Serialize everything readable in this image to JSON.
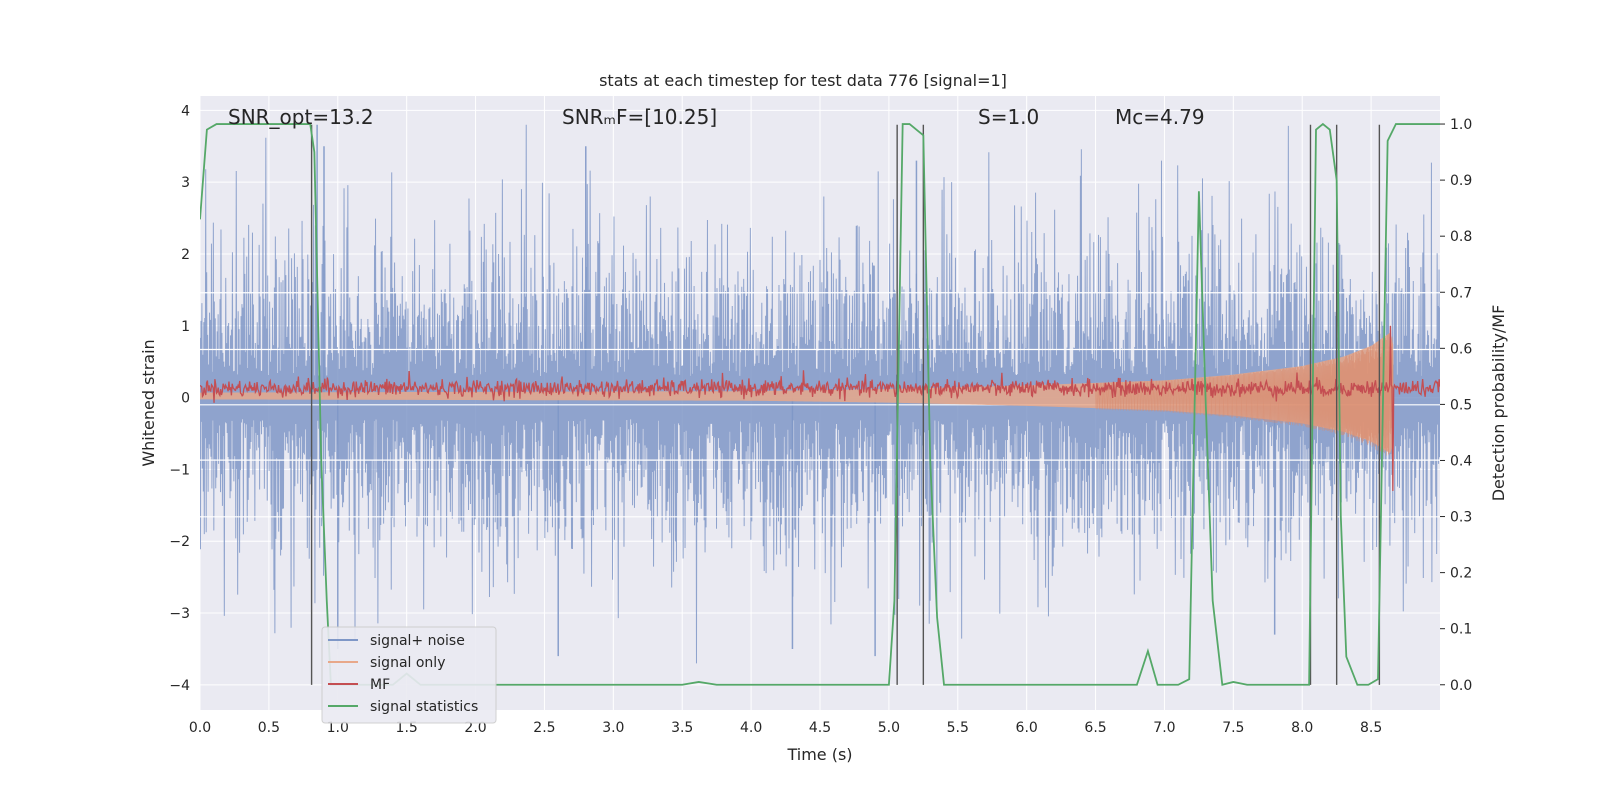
{
  "chart_data": {
    "type": "line",
    "title": "stats at each timestep for test data 776 [signal=1]",
    "xlabel": "Time (s)",
    "ylabel": "Whitened strain",
    "ylabel_right": "Detection probability/MF",
    "xlim": [
      0.0,
      9.0
    ],
    "ylim": [
      -4.35,
      4.2
    ],
    "ylim_right": [
      -0.045,
      1.05
    ],
    "x_ticks": [
      "0.0",
      "0.5",
      "1.0",
      "1.5",
      "2.0",
      "2.5",
      "3.0",
      "3.5",
      "4.0",
      "4.5",
      "5.0",
      "5.5",
      "6.0",
      "6.5",
      "7.0",
      "7.5",
      "8.0",
      "8.5"
    ],
    "y_ticks": [
      "−4",
      "−3",
      "−2",
      "−1",
      "0",
      "1",
      "2",
      "3",
      "4"
    ],
    "y_ticks_right": [
      "0.0",
      "0.1",
      "0.2",
      "0.3",
      "0.4",
      "0.5",
      "0.6",
      "0.7",
      "0.8",
      "0.9",
      "1.0"
    ],
    "annotations": [
      {
        "text": "SNR_opt=13.2",
        "x": 0.2,
        "y": 3.9
      },
      {
        "text": "SNRₘF=[10.25]",
        "x": 2.6,
        "y": 3.9
      },
      {
        "text": "S=1.0",
        "x": 5.6,
        "y": 3.9
      },
      {
        "text": "Mc=4.79",
        "x": 6.6,
        "y": 3.9
      }
    ],
    "legend_position": "lower-left",
    "series": [
      {
        "name": "signal+ noise",
        "color": "#7f97c7",
        "axis": "left",
        "description": "whitened strain noise, approx uniform envelope",
        "envelope": {
          "typical_max": 2.2,
          "typical_min": -2.1,
          "peak_max": 3.8,
          "peak_min": -3.7
        },
        "notable_peaks": [
          [
            0.85,
            3.8
          ],
          [
            0.9,
            3.5
          ],
          [
            2.8,
            3.5
          ],
          [
            5.2,
            3.3
          ],
          [
            1.0,
            -3.5
          ],
          [
            2.6,
            -3.6
          ],
          [
            4.3,
            -3.5
          ],
          [
            4.9,
            -3.6
          ],
          [
            7.8,
            -3.3
          ]
        ]
      },
      {
        "name": "signal only",
        "color": "#e8a88a",
        "axis": "left",
        "description": "chirp with growing amplitude",
        "amplitude": [
          [
            0.0,
            0.05
          ],
          [
            4.0,
            0.07
          ],
          [
            5.0,
            0.1
          ],
          [
            6.0,
            0.15
          ],
          [
            7.0,
            0.22
          ],
          [
            7.5,
            0.3
          ],
          [
            8.0,
            0.42
          ],
          [
            8.3,
            0.55
          ],
          [
            8.5,
            0.7
          ],
          [
            8.65,
            0.9
          ],
          [
            8.7,
            0.0
          ]
        ],
        "merger_time": 8.66
      },
      {
        "name": "MF",
        "color": "#c44e52",
        "axis": "left",
        "description": "matched filter output near 0.1 with fluctuations",
        "baseline": 0.13,
        "spikes": [
          [
            8.64,
            1.0
          ],
          [
            8.66,
            -1.3
          ],
          [
            1.52,
            0.37
          ],
          [
            4.38,
            0.38
          ],
          [
            7.96,
            0.35
          ]
        ]
      },
      {
        "name": "signal statistics",
        "color": "#55a868",
        "axis": "right",
        "x": [
          0.0,
          0.05,
          0.12,
          0.5,
          0.8,
          0.83,
          0.88,
          0.92,
          0.95,
          1.0,
          1.4,
          1.5,
          1.6,
          2.0,
          3.0,
          3.5,
          3.62,
          3.75,
          4.0,
          5.0,
          5.04,
          5.1,
          5.15,
          5.2,
          5.25,
          5.3,
          5.35,
          5.4,
          6.0,
          6.8,
          6.88,
          6.95,
          7.0,
          7.1,
          7.18,
          7.25,
          7.3,
          7.35,
          7.42,
          7.5,
          7.6,
          8.05,
          8.1,
          8.15,
          8.2,
          8.25,
          8.28,
          8.32,
          8.4,
          8.48,
          8.55,
          8.62,
          8.68,
          8.75,
          9.0
        ],
        "values": [
          0.83,
          0.99,
          1.0,
          1.0,
          1.0,
          0.95,
          0.4,
          0.15,
          0.0,
          0.0,
          0.0,
          0.02,
          0.0,
          0.0,
          0.0,
          0.0,
          0.005,
          0.0,
          0.0,
          0.0,
          0.15,
          1.0,
          1.0,
          0.99,
          0.98,
          0.4,
          0.12,
          0.0,
          0.0,
          0.0,
          0.06,
          0.0,
          0.0,
          0.0,
          0.01,
          0.88,
          0.5,
          0.15,
          0.0,
          0.005,
          0.0,
          0.0,
          0.99,
          1.0,
          0.99,
          0.9,
          0.3,
          0.05,
          0.0,
          0.0,
          0.01,
          0.97,
          1.0,
          1.0,
          1.0
        ]
      }
    ],
    "horizontal_lines": {
      "color": "#ffffff",
      "y": [
        1.46,
        0.67,
        -0.1,
        -0.87,
        -1.66
      ]
    },
    "vertical_lines": {
      "color": "#555555",
      "x": [
        0.81,
        5.06,
        5.25,
        8.06,
        8.25,
        8.56
      ],
      "y_range": [
        -4.0,
        3.8
      ]
    }
  }
}
